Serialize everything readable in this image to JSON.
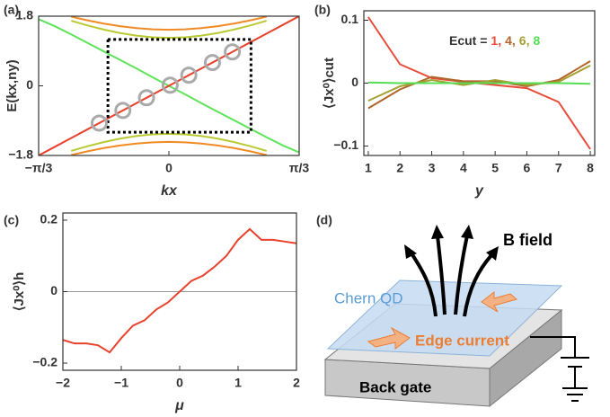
{
  "chart_data": [
    {
      "type": "line",
      "panel_label": "(a)",
      "xlabel": "kx",
      "ylabel": "E(kx,ny)",
      "xlim": [
        -1.0472,
        1.0472
      ],
      "ylim": [
        -1.8,
        1.8
      ],
      "xticks": [
        {
          "value": -1.0472,
          "label": "−π/3"
        },
        0,
        {
          "value": 1.0472,
          "label": "π/3"
        }
      ],
      "yticks": [
        1.8,
        0,
        {
          "value": -1.8,
          "label": "−1.8"
        }
      ],
      "x": [
        -1.0472,
        -0.9163,
        -0.7854,
        -0.6545,
        -0.5236,
        -0.3927,
        -0.2618,
        -0.1309,
        0,
        0.1309,
        0.2618,
        0.3927,
        0.5236,
        0.6545,
        0.7854,
        0.9163,
        1.0472
      ],
      "series": [
        {
          "color": "#b9c934",
          "values": [
            null,
            null,
            1.683,
            1.561,
            1.454,
            1.364,
            1.297,
            1.254,
            1.24,
            1.254,
            1.297,
            1.364,
            1.454,
            1.561,
            1.683,
            null,
            null
          ]
        },
        {
          "color": "#b9c934",
          "values": [
            null,
            null,
            -1.683,
            -1.561,
            -1.454,
            -1.364,
            -1.297,
            -1.254,
            -1.24,
            -1.254,
            -1.297,
            -1.364,
            -1.454,
            -1.561,
            -1.683,
            null,
            null
          ]
        },
        {
          "color": "#f08a24",
          "values": [
            null,
            null,
            1.788,
            1.692,
            1.609,
            1.542,
            1.491,
            1.46,
            1.45,
            1.46,
            1.491,
            1.542,
            1.609,
            1.692,
            1.788,
            null,
            null
          ]
        },
        {
          "color": "#f08a24",
          "values": [
            null,
            null,
            -1.788,
            -1.692,
            -1.609,
            -1.542,
            -1.491,
            -1.46,
            -1.45,
            -1.46,
            -1.491,
            -1.542,
            -1.609,
            -1.692,
            -1.788,
            null,
            null
          ]
        },
        {
          "color": "#5ee35a",
          "values": [
            1.72,
            1.54,
            1.33,
            1.11,
            0.89,
            0.67,
            0.45,
            0.22,
            0,
            -0.22,
            -0.45,
            -0.67,
            -0.89,
            -1.11,
            -1.33,
            -1.54,
            -1.72
          ]
        },
        {
          "color": "#e8412c",
          "values": [
            -1.8,
            -1.575,
            -1.35,
            -1.125,
            -0.9,
            -0.675,
            -0.45,
            -0.225,
            0,
            0.225,
            0.45,
            0.675,
            0.9,
            1.125,
            1.35,
            1.575,
            1.8
          ]
        }
      ],
      "markers": {
        "color": "#aaaaaa",
        "x": [
          -0.56,
          -0.37,
          -0.18,
          0.01,
          0.16,
          0.35,
          0.51
        ],
        "y": [
          -0.963,
          -0.636,
          -0.309,
          0.017,
          0.275,
          0.602,
          0.877
        ]
      },
      "highlight": {
        "x": [
          -0.49,
          0.66
        ],
        "y": [
          -1.2,
          1.2
        ]
      }
    },
    {
      "type": "line",
      "panel_label": "(b)",
      "xlabel": "y",
      "ylabel": "⟨Jx⁰⟩cut",
      "xlim": [
        0.86,
        8.14
      ],
      "ylim": [
        -0.115,
        0.115
      ],
      "xticks": [
        1,
        2,
        3,
        4,
        5,
        6,
        7,
        8
      ],
      "yticks": [
        0.1,
        0,
        {
          "value": -0.1,
          "label": "−0.1"
        }
      ],
      "x": [
        1,
        2,
        3,
        4,
        5,
        6,
        7,
        8
      ],
      "legend_title": "Ecut =",
      "legend_separator": ",",
      "series": [
        {
          "name": "1",
          "color": "#e84b3a",
          "values": [
            0.105,
            0.03,
            0.008,
            0.002,
            -0.003,
            -0.008,
            -0.03,
            -0.105
          ]
        },
        {
          "name": "4",
          "color": "#b0652a",
          "values": [
            -0.04,
            -0.01,
            0.01,
            0.003,
            0.003,
            -0.005,
            0.005,
            0.035
          ]
        },
        {
          "name": "6",
          "color": "#a4a032",
          "values": [
            -0.028,
            -0.005,
            0.005,
            -0.003,
            0.005,
            -0.003,
            0.002,
            0.028
          ]
        },
        {
          "name": "8",
          "color": "#55dd55",
          "values": [
            0.001,
            0,
            0,
            0,
            0,
            0,
            0,
            -0.001
          ]
        }
      ]
    },
    {
      "type": "line",
      "panel_label": "(c)",
      "xlabel": "μ",
      "ylabel": "⟨Jx⁰⟩h",
      "xlim": [
        -2,
        2
      ],
      "ylim": [
        -0.22,
        0.22
      ],
      "xticks": [
        {
          "value": -2,
          "label": "−2"
        },
        {
          "value": -1,
          "label": "−1"
        },
        0,
        1,
        2
      ],
      "yticks": [
        0.2,
        0,
        {
          "value": -0.2,
          "label": "−0.2"
        }
      ],
      "hline": 0,
      "x": [
        -2,
        -1.8,
        -1.6,
        -1.4,
        -1.2,
        -1,
        -0.8,
        -0.6,
        -0.4,
        -0.2,
        0,
        0.2,
        0.4,
        0.6,
        0.8,
        1,
        1.2,
        1.4,
        1.6,
        1.8,
        2
      ],
      "series": [
        {
          "color": "#e8412c",
          "values": [
            -0.135,
            -0.145,
            -0.145,
            -0.15,
            -0.17,
            -0.13,
            -0.095,
            -0.08,
            -0.05,
            -0.03,
            0,
            0.03,
            0.045,
            0.07,
            0.1,
            0.145,
            0.175,
            0.145,
            0.145,
            0.14,
            0.135
          ]
        }
      ]
    }
  ],
  "diagram": {
    "panel_label": "(d)",
    "field_label": "B field",
    "sheet_label": "Chern QD",
    "current_label": "Edge current",
    "gate_label": "Back gate"
  }
}
